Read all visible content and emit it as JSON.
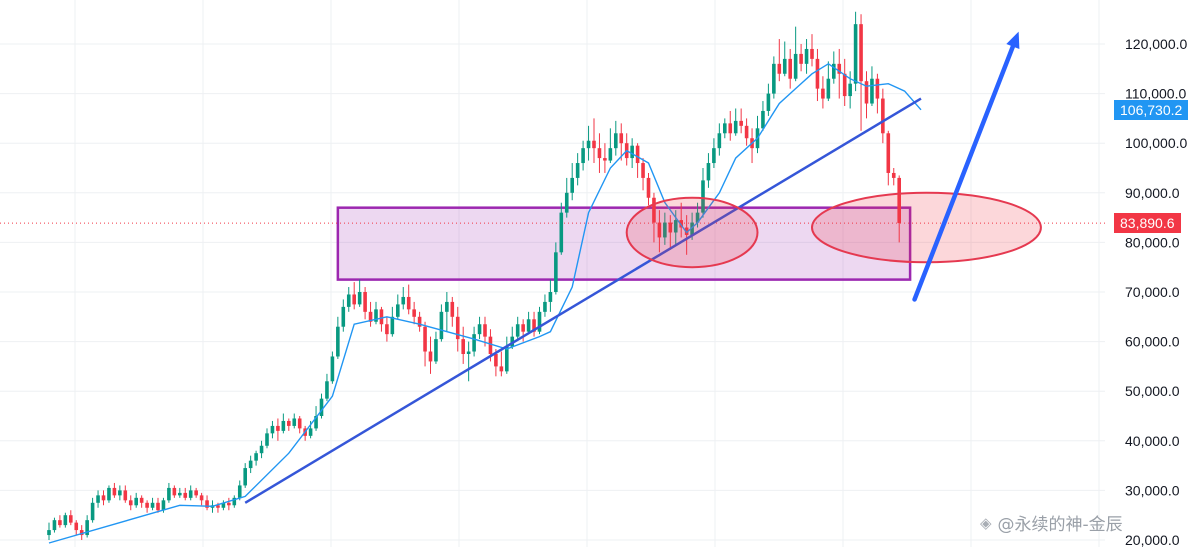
{
  "chart_data": {
    "type": "candlestick",
    "y_ticks": [
      "20,000.0",
      "30,000.0",
      "40,000.0",
      "50,000.0",
      "60,000.0",
      "70,000.0",
      "80,000.0",
      "90,000.0",
      "100,000.0",
      "110,000.0",
      "120,000.0"
    ],
    "y_tick_values": [
      20000,
      30000,
      40000,
      50000,
      60000,
      70000,
      80000,
      90000,
      100000,
      110000,
      120000
    ],
    "ylim": [
      19500,
      127000
    ],
    "price_tags": {
      "ma": {
        "label": "106,730.2",
        "value": 106730.2,
        "color": "#2196f3"
      },
      "last": {
        "label": "83,890.6",
        "value": 83890.6,
        "color": "#f23645"
      }
    },
    "candles": [
      [
        21000,
        22000,
        20000,
        23500
      ],
      [
        22000,
        24000,
        21500,
        24500
      ],
      [
        24000,
        23000,
        22500,
        25000
      ],
      [
        23000,
        25000,
        22500,
        25500
      ],
      [
        25000,
        23500,
        23000,
        26000
      ],
      [
        23500,
        22000,
        21000,
        24000
      ],
      [
        22000,
        21000,
        20000,
        23000
      ],
      [
        21000,
        24000,
        20500,
        25000
      ],
      [
        24000,
        27500,
        23500,
        28500
      ],
      [
        27500,
        29000,
        26500,
        30000
      ],
      [
        29000,
        28000,
        27000,
        30000
      ],
      [
        28000,
        30500,
        27500,
        31000
      ],
      [
        30500,
        29000,
        28500,
        31500
      ],
      [
        29000,
        30000,
        28000,
        31000
      ],
      [
        30000,
        28000,
        27500,
        31000
      ],
      [
        28000,
        27000,
        26000,
        29000
      ],
      [
        27000,
        28500,
        26500,
        29500
      ],
      [
        28500,
        27500,
        26500,
        29000
      ],
      [
        27500,
        26500,
        25500,
        28000
      ],
      [
        26500,
        27500,
        26000,
        28500
      ],
      [
        27500,
        26000,
        25500,
        28500
      ],
      [
        26000,
        28000,
        25500,
        28500
      ],
      [
        28000,
        30500,
        27500,
        31500
      ],
      [
        30500,
        29000,
        28500,
        31000
      ],
      [
        29000,
        29500,
        28500,
        30500
      ],
      [
        29500,
        28500,
        28000,
        30500
      ],
      [
        28500,
        30000,
        28000,
        31000
      ],
      [
        30000,
        29000,
        28500,
        30500
      ],
      [
        29000,
        28000,
        27000,
        29500
      ],
      [
        28000,
        26500,
        26000,
        29000
      ],
      [
        26500,
        27000,
        25500,
        28000
      ],
      [
        27000,
        26500,
        25500,
        27500
      ],
      [
        26500,
        27500,
        26000,
        28000
      ],
      [
        27500,
        27000,
        26000,
        28500
      ],
      [
        27000,
        28500,
        26500,
        29000
      ],
      [
        28500,
        31000,
        28000,
        32000
      ],
      [
        31000,
        34500,
        30500,
        35500
      ],
      [
        34500,
        36000,
        33500,
        37000
      ],
      [
        36000,
        37500,
        35000,
        38000
      ],
      [
        37500,
        39000,
        36500,
        40000
      ],
      [
        39000,
        41500,
        38500,
        42500
      ],
      [
        41500,
        43000,
        40500,
        44000
      ],
      [
        43000,
        42000,
        40000,
        44500
      ],
      [
        42000,
        44000,
        41500,
        45500
      ],
      [
        44000,
        43000,
        42000,
        44500
      ],
      [
        43000,
        44500,
        42500,
        45500
      ],
      [
        44500,
        42500,
        41500,
        45000
      ],
      [
        42500,
        41000,
        40000,
        43000
      ],
      [
        41000,
        42500,
        40500,
        44000
      ],
      [
        42500,
        45000,
        42000,
        47000
      ],
      [
        45000,
        48500,
        44500,
        49500
      ],
      [
        48500,
        52000,
        48000,
        53500
      ],
      [
        52000,
        57000,
        51500,
        58000
      ],
      [
        57000,
        63000,
        56500,
        65000
      ],
      [
        63000,
        67000,
        62000,
        68500
      ],
      [
        67000,
        69500,
        66000,
        71000
      ],
      [
        69500,
        67500,
        66500,
        72000
      ],
      [
        67500,
        70000,
        67000,
        72500
      ],
      [
        70000,
        66000,
        64500,
        71000
      ],
      [
        66000,
        64000,
        63000,
        68000
      ],
      [
        64000,
        66500,
        63500,
        68000
      ],
      [
        66500,
        63500,
        62000,
        67000
      ],
      [
        63500,
        61500,
        60000,
        65000
      ],
      [
        61500,
        65000,
        61000,
        67000
      ],
      [
        65000,
        67500,
        64500,
        69500
      ],
      [
        67500,
        69000,
        66500,
        71000
      ],
      [
        69000,
        66500,
        65500,
        71500
      ],
      [
        66500,
        65000,
        63500,
        68000
      ],
      [
        65000,
        63000,
        62000,
        66000
      ],
      [
        63000,
        58000,
        55000,
        64000
      ],
      [
        58000,
        56000,
        53500,
        61000
      ],
      [
        56000,
        60500,
        55500,
        62000
      ],
      [
        60500,
        66000,
        60000,
        67500
      ],
      [
        66000,
        68000,
        62000,
        70000
      ],
      [
        68000,
        65000,
        63000,
        69000
      ],
      [
        65000,
        60500,
        58000,
        67000
      ],
      [
        60500,
        57500,
        55500,
        63000
      ],
      [
        57500,
        58000,
        52000,
        60000
      ],
      [
        58000,
        61500,
        57000,
        63000
      ],
      [
        61500,
        63500,
        60500,
        65000
      ],
      [
        63500,
        61000,
        59000,
        65000
      ],
      [
        61000,
        57500,
        56000,
        62500
      ],
      [
        57500,
        55000,
        53000,
        58500
      ],
      [
        55000,
        54000,
        53000,
        58000
      ],
      [
        54000,
        59000,
        53500,
        61000
      ],
      [
        59000,
        61000,
        58500,
        63000
      ],
      [
        61000,
        63500,
        60500,
        65000
      ],
      [
        63500,
        62000,
        60000,
        64500
      ],
      [
        62000,
        64500,
        61500,
        66000
      ],
      [
        64500,
        62000,
        61000,
        66000
      ],
      [
        62000,
        66000,
        61500,
        67000
      ],
      [
        66000,
        68000,
        65000,
        69500
      ],
      [
        68000,
        70000,
        66000,
        72500
      ],
      [
        70000,
        78000,
        69500,
        80000
      ],
      [
        78000,
        86000,
        77500,
        88000
      ],
      [
        86000,
        90000,
        85000,
        93000
      ],
      [
        90000,
        93000,
        88500,
        96000
      ],
      [
        93000,
        96000,
        91500,
        98000
      ],
      [
        96000,
        99000,
        94500,
        100500
      ],
      [
        99000,
        100500,
        96500,
        103500
      ],
      [
        100500,
        99000,
        96000,
        105000
      ],
      [
        99000,
        97000,
        94000,
        102000
      ],
      [
        97000,
        96500,
        94000,
        100000
      ],
      [
        96500,
        99000,
        96000,
        103000
      ],
      [
        99000,
        102000,
        97500,
        104500
      ],
      [
        102000,
        100000,
        96500,
        104000
      ],
      [
        100000,
        97000,
        95500,
        102000
      ],
      [
        97000,
        99500,
        95000,
        101000
      ],
      [
        99500,
        96000,
        93000,
        100000
      ],
      [
        96000,
        93000,
        90500,
        97000
      ],
      [
        93000,
        89000,
        87500,
        94000
      ],
      [
        89000,
        84000,
        80000,
        90000
      ],
      [
        84000,
        81000,
        78000,
        86500
      ],
      [
        81000,
        84000,
        79500,
        86000
      ],
      [
        84000,
        82000,
        78500,
        85500
      ],
      [
        82000,
        84500,
        79500,
        86500
      ],
      [
        84500,
        83000,
        81000,
        88000
      ],
      [
        83000,
        81500,
        77500,
        85500
      ],
      [
        81500,
        84000,
        80500,
        86000
      ],
      [
        84000,
        86000,
        83000,
        88000
      ],
      [
        86000,
        92500,
        85000,
        95000
      ],
      [
        92500,
        96000,
        91000,
        98000
      ],
      [
        96000,
        99000,
        95000,
        101000
      ],
      [
        99000,
        102000,
        97500,
        104000
      ],
      [
        102000,
        104000,
        101000,
        105000
      ],
      [
        104000,
        102000,
        100500,
        106500
      ],
      [
        102000,
        104500,
        101500,
        107000
      ],
      [
        104500,
        103500,
        102000,
        107000
      ],
      [
        103500,
        101000,
        99500,
        105000
      ],
      [
        101000,
        99000,
        96000,
        103000
      ],
      [
        99000,
        103000,
        98000,
        105500
      ],
      [
        103000,
        106500,
        102500,
        108500
      ],
      [
        106500,
        110000,
        105500,
        112000
      ],
      [
        110000,
        116000,
        109000,
        117500
      ],
      [
        116000,
        114000,
        112500,
        121000
      ],
      [
        114000,
        117000,
        113500,
        120500
      ],
      [
        117000,
        113000,
        111000,
        119000
      ],
      [
        113000,
        118000,
        112500,
        123500
      ],
      [
        118000,
        116000,
        114500,
        120000
      ],
      [
        116000,
        119000,
        114000,
        121000
      ],
      [
        119000,
        117000,
        115500,
        122000
      ],
      [
        117000,
        111000,
        108500,
        119000
      ],
      [
        111000,
        109000,
        107000,
        113500
      ],
      [
        109000,
        113000,
        108500,
        116500
      ],
      [
        113000,
        116000,
        112000,
        118500
      ],
      [
        116000,
        114000,
        109000,
        119000
      ],
      [
        114000,
        109500,
        107500,
        117000
      ],
      [
        109500,
        112000,
        107000,
        114500
      ],
      [
        112000,
        124000,
        110500,
        126500
      ],
      [
        124000,
        112500,
        102500,
        126000
      ],
      [
        112500,
        108000,
        105000,
        114500
      ],
      [
        108000,
        113000,
        107500,
        115500
      ],
      [
        113000,
        109000,
        106000,
        114000
      ],
      [
        109000,
        102000,
        100000,
        111000
      ],
      [
        102000,
        94000,
        91500,
        102500
      ],
      [
        94000,
        93000,
        91500,
        95000
      ],
      [
        93000,
        83890.6,
        80000,
        93500
      ]
    ],
    "ma_line": [
      [
        0,
        19400
      ],
      [
        24,
        27000
      ],
      [
        30,
        26800
      ],
      [
        36,
        28800
      ],
      [
        44,
        37500
      ],
      [
        52,
        49000
      ],
      [
        56,
        63500
      ],
      [
        62,
        65000
      ],
      [
        68,
        63500
      ],
      [
        78,
        60500
      ],
      [
        84,
        58500
      ],
      [
        90,
        61000
      ],
      [
        92,
        62000
      ],
      [
        96,
        71000
      ],
      [
        99,
        86000
      ],
      [
        103,
        95000
      ],
      [
        106,
        98500
      ],
      [
        110,
        96000
      ],
      [
        113,
        88000
      ],
      [
        117,
        82000
      ],
      [
        119,
        84000
      ],
      [
        123,
        90000
      ],
      [
        126,
        97000
      ],
      [
        130,
        101000
      ],
      [
        134,
        108000
      ],
      [
        137,
        111000
      ],
      [
        140,
        114000
      ],
      [
        143,
        116000
      ],
      [
        147,
        113000
      ],
      [
        150,
        111500
      ],
      [
        154,
        112000
      ],
      [
        157,
        110500
      ],
      [
        160,
        106730.2
      ]
    ],
    "trendline": {
      "points": [
        [
          36,
          27500
        ],
        [
          160,
          109000
        ]
      ],
      "color": "#3556d8"
    },
    "support_zone": {
      "x_range": [
        53,
        158
      ],
      "y_range": [
        72500,
        87000
      ],
      "color": "#9c27b0"
    },
    "arrow": {
      "from": [
        159,
        68500
      ],
      "to": [
        177,
        122500
      ],
      "color": "#2962ff"
    },
    "highlight_ellipses": [
      {
        "center": [
          118,
          82000
        ],
        "radii": [
          12,
          7000
        ]
      },
      {
        "center": [
          161,
          83000
        ],
        "radii": [
          21,
          7000
        ]
      }
    ],
    "colors": {
      "up": "#26a69a",
      "up_mark": "#089981",
      "down": "#f23645",
      "ma": "#2196f3",
      "grid": "#eef0f3"
    }
  },
  "watermark": {
    "icon": "binance-logo-icon",
    "text": "@永续的神-金辰"
  }
}
